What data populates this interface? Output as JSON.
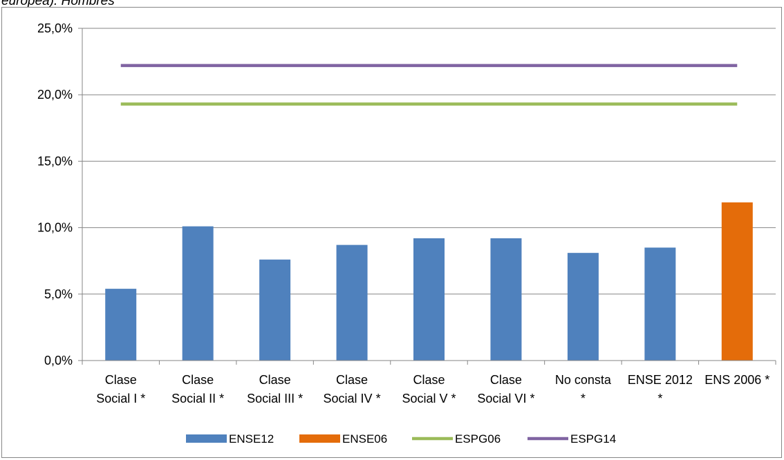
{
  "header": {
    "text": "europea). Hombres"
  },
  "chart_data": {
    "type": "bar",
    "categories": [
      [
        "Clase",
        "Social I *"
      ],
      [
        "Clase",
        "Social II *"
      ],
      [
        "Clase",
        "Social III *"
      ],
      [
        "Clase",
        "Social IV *"
      ],
      [
        "Clase",
        "Social V *"
      ],
      [
        "Clase",
        "Social VI *"
      ],
      [
        "No consta",
        "*"
      ],
      [
        "ENSE 2012",
        "*"
      ],
      [
        "ENS 2006 *"
      ]
    ],
    "series": [
      {
        "name": "ENSE12",
        "kind": "bar",
        "color": "#4F81BD",
        "values": [
          5.4,
          10.1,
          7.6,
          8.7,
          9.2,
          9.2,
          8.1,
          8.5,
          null
        ]
      },
      {
        "name": "ENSE06",
        "kind": "bar",
        "color": "#E46C0A",
        "values": [
          null,
          null,
          null,
          null,
          null,
          null,
          null,
          null,
          11.9
        ]
      },
      {
        "name": "ESPG06",
        "kind": "line",
        "color": "#9BBB59",
        "value": 19.3
      },
      {
        "name": "ESPG14",
        "kind": "line",
        "color": "#8064A2",
        "value": 22.2
      }
    ],
    "yticks": [
      "0,0%",
      "5,0%",
      "10,0%",
      "15,0%",
      "20,0%",
      "25,0%"
    ],
    "ylim": [
      0,
      25
    ],
    "ystep": 5,
    "grid": true,
    "legend_position": "bottom",
    "title": "",
    "xlabel": "",
    "ylabel": ""
  }
}
